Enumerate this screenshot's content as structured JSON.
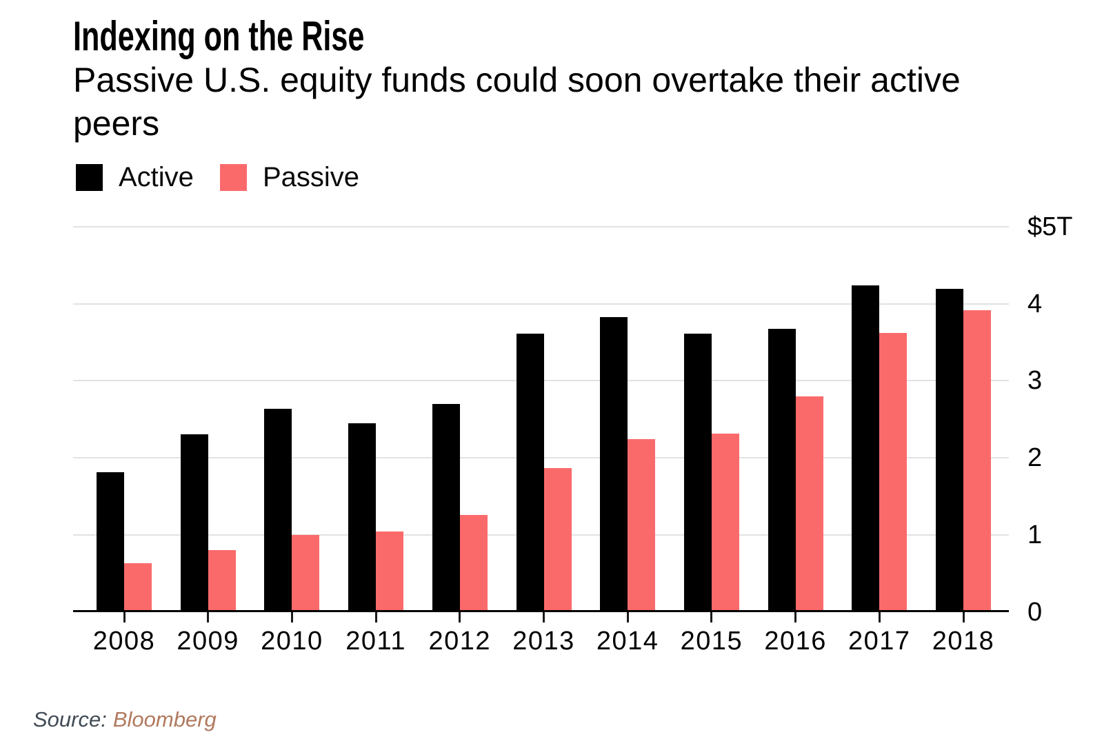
{
  "chart_data": {
    "type": "bar",
    "title": "Indexing on the Rise",
    "subtitle": "Passive U.S. equity funds could soon overtake their active peers",
    "subtitle_lines": [
      "Passive U.S. equity funds could soon overtake their active",
      "peers"
    ],
    "categories": [
      "2008",
      "2009",
      "2010",
      "2011",
      "2012",
      "2013",
      "2014",
      "2015",
      "2016",
      "2017",
      "2018"
    ],
    "series": [
      {
        "name": "Active",
        "color": "#000000",
        "values": [
          1.82,
          2.31,
          2.64,
          2.45,
          2.7,
          3.62,
          3.83,
          3.62,
          3.68,
          4.24,
          4.2
        ]
      },
      {
        "name": "Passive",
        "color": "#fb6a6b",
        "values": [
          0.64,
          0.81,
          1.0,
          1.05,
          1.26,
          1.87,
          2.25,
          2.32,
          2.8,
          3.63,
          3.92
        ]
      }
    ],
    "unit": "trillion USD",
    "ylim": [
      0,
      5
    ],
    "y_ticks": [
      {
        "label": "$5T",
        "value": 5
      },
      {
        "label": "4",
        "value": 4
      },
      {
        "label": "3",
        "value": 3
      },
      {
        "label": "2",
        "value": 2
      },
      {
        "label": "1",
        "value": 1
      },
      {
        "label": "0",
        "value": 0
      }
    ],
    "legend_position": "top-left",
    "grid": "horizontal",
    "gridline_color": "#e2e2e2",
    "axis_color": "#000000"
  },
  "source": {
    "prefix": "Source:",
    "name": "Bloomberg",
    "prefix_color": "#414b55",
    "name_color": "#b1795e"
  }
}
